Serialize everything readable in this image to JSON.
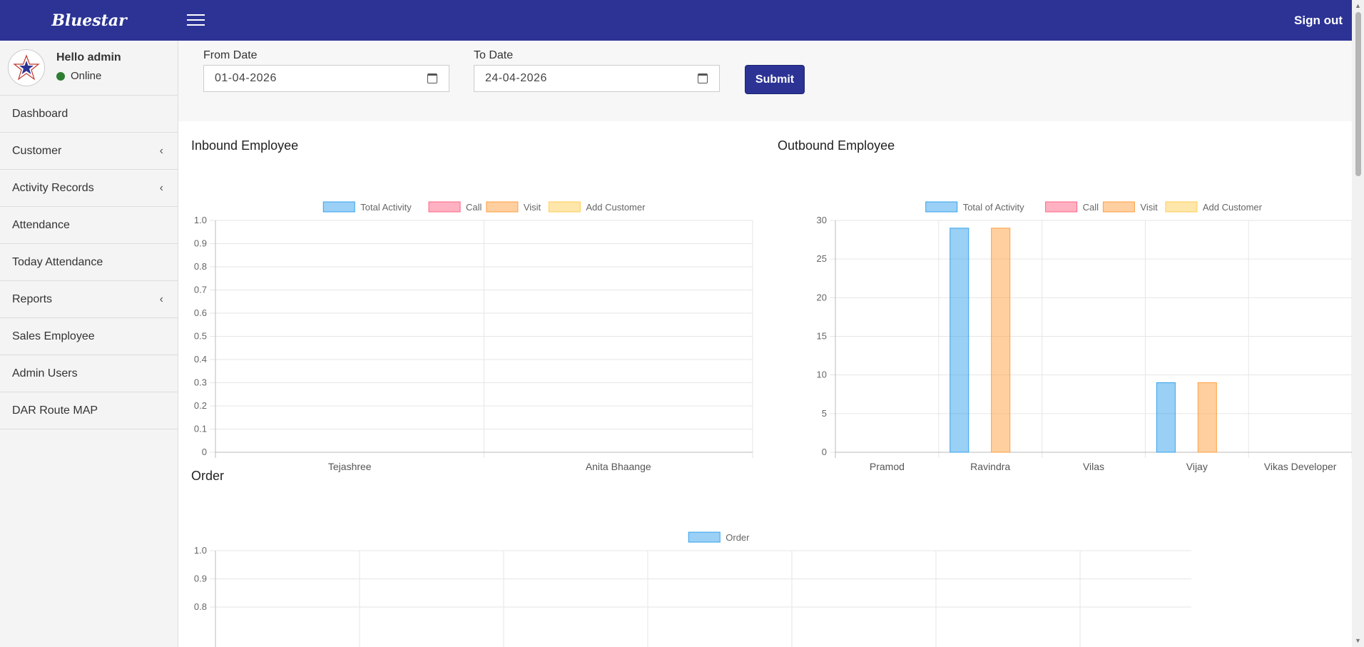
{
  "app": {
    "brand": "Bluestar",
    "signout": "Sign out"
  },
  "user": {
    "greeting": "Hello admin",
    "status": "Online"
  },
  "sidebar": {
    "items": [
      {
        "label": "Dashboard",
        "chevron": false
      },
      {
        "label": "Customer",
        "chevron": true
      },
      {
        "label": "Activity Records",
        "chevron": true
      },
      {
        "label": "Attendance",
        "chevron": false
      },
      {
        "label": "Today Attendance",
        "chevron": false
      },
      {
        "label": "Reports",
        "chevron": true
      },
      {
        "label": "Sales Employee",
        "chevron": false
      },
      {
        "label": "Admin Users",
        "chevron": false
      },
      {
        "label": "DAR Route MAP",
        "chevron": false
      }
    ]
  },
  "filters": {
    "from_label": "From Date",
    "from_value": "01-04-2026",
    "to_label": "To Date",
    "to_value": "24-04-2026",
    "submit_label": "Submit"
  },
  "chart_data": [
    {
      "type": "bar",
      "title": "Inbound Employee",
      "categories": [
        "Tejashree",
        "Anita Bhaange"
      ],
      "series": [
        {
          "name": "Total Activity",
          "values": [
            0,
            0
          ],
          "color": "#36a2eb"
        },
        {
          "name": "Call",
          "values": [
            0,
            0
          ],
          "color": "#ff6384"
        },
        {
          "name": "Visit",
          "values": [
            0,
            0
          ],
          "color": "#ff9f40"
        },
        {
          "name": "Add Customer",
          "values": [
            0,
            0
          ],
          "color": "#ffcd56"
        }
      ],
      "ylim": [
        0,
        1
      ],
      "yticks": [
        "0",
        "0.1",
        "0.2",
        "0.3",
        "0.4",
        "0.5",
        "0.6",
        "0.7",
        "0.8",
        "0.9",
        "1.0"
      ],
      "legend": "top",
      "grid": true
    },
    {
      "type": "bar",
      "title": "Outbound Employee",
      "categories": [
        "Pramod",
        "Ravindra",
        "Vilas",
        "Vijay",
        "Vikas Developer"
      ],
      "series": [
        {
          "name": "Total of Activity",
          "values": [
            0,
            29,
            0,
            9,
            0
          ],
          "color": "#36a2eb"
        },
        {
          "name": "Call",
          "values": [
            0,
            0,
            0,
            0,
            0
          ],
          "color": "#ff6384"
        },
        {
          "name": "Visit",
          "values": [
            0,
            29,
            0,
            9,
            0
          ],
          "color": "#ff9f40"
        },
        {
          "name": "Add Customer",
          "values": [
            0,
            0,
            0,
            0,
            0
          ],
          "color": "#ffcd56"
        }
      ],
      "ylim": [
        0,
        30
      ],
      "yticks": [
        "0",
        "5",
        "10",
        "15",
        "20",
        "25",
        "30"
      ],
      "legend": "top",
      "grid": true
    },
    {
      "type": "bar",
      "title": "Order",
      "categories": [],
      "series": [
        {
          "name": "Order",
          "values": [],
          "color": "#36a2eb"
        }
      ],
      "ylim": [
        0,
        1
      ],
      "yticks": [
        "0.8",
        "0.9",
        "1.0"
      ],
      "legend": "top",
      "grid": true
    }
  ]
}
